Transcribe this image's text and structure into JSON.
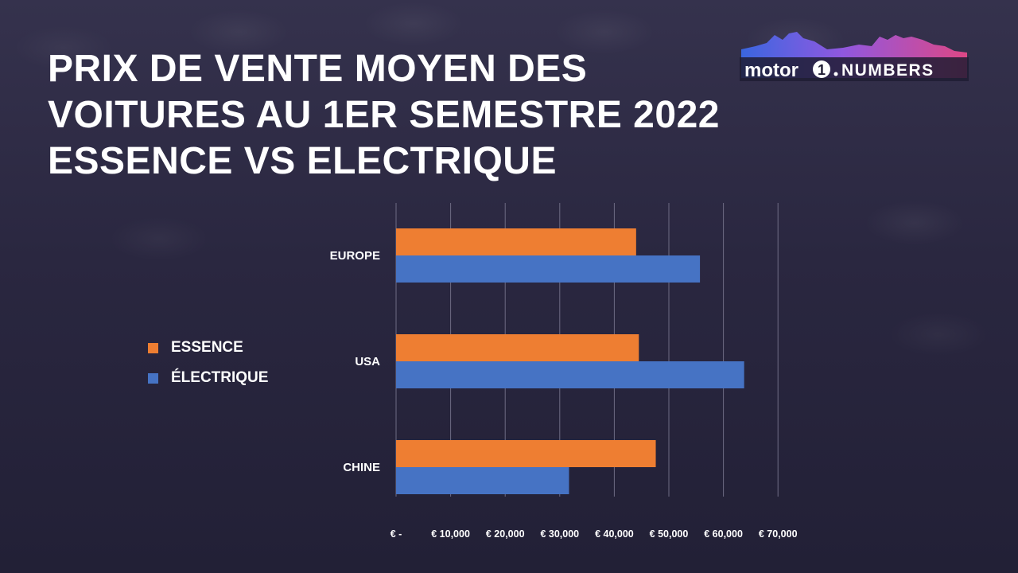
{
  "title_lines": [
    "PRIX DE VENTE MOYEN DES",
    "VOITURES AU 1ER SEMESTRE 2022",
    "ESSENCE VS ELECTRIQUE"
  ],
  "logo": {
    "text_left": "motor",
    "text_num": "1",
    "text_right": "NUMBERS",
    "icon": "mountain-skyline-logo"
  },
  "colors": {
    "essence": "#ee7e32",
    "electrique": "#4673c4",
    "background": "#24223a",
    "text": "#ffffff"
  },
  "legend": [
    {
      "label": "ESSENCE",
      "color": "#ee7e32"
    },
    {
      "label": "ÉLECTRIQUE",
      "color": "#4673c4"
    }
  ],
  "chart_data": {
    "type": "bar",
    "orientation": "horizontal",
    "title": "PRIX DE VENTE MOYEN DES VOITURES AU 1ER SEMESTRE 2022 ESSENCE VS ELECTRIQUE",
    "categories": [
      "EUROPE",
      "USA",
      "CHINE"
    ],
    "series": [
      {
        "name": "ESSENCE",
        "values": [
          44000,
          44500,
          47600
        ]
      },
      {
        "name": "ÉLECTRIQUE",
        "values": [
          55700,
          63800,
          31700
        ]
      }
    ],
    "xlim": [
      0,
      70000
    ],
    "xticks": [
      0,
      10000,
      20000,
      30000,
      40000,
      50000,
      60000,
      70000
    ],
    "xtick_labels": [
      "€ -",
      "€ 10,000",
      "€ 20,000",
      "€ 30,000",
      "€ 40,000",
      "€ 50,000",
      "€ 60,000",
      "€ 70,000"
    ],
    "grid": true,
    "legend_position": "left"
  }
}
